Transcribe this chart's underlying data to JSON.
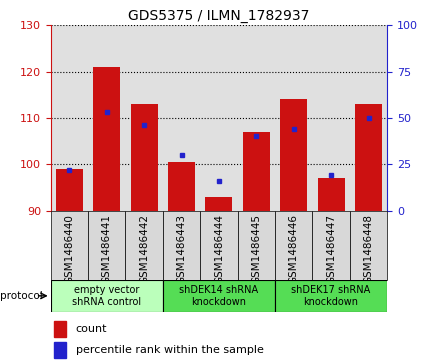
{
  "title": "GDS5375 / ILMN_1782937",
  "samples": [
    "GSM1486440",
    "GSM1486441",
    "GSM1486442",
    "GSM1486443",
    "GSM1486444",
    "GSM1486445",
    "GSM1486446",
    "GSM1486447",
    "GSM1486448"
  ],
  "count_values": [
    99,
    121,
    113,
    100.5,
    93,
    107,
    114,
    97,
    113
  ],
  "percentile_values": [
    22,
    53,
    46,
    30,
    16,
    40,
    44,
    19,
    50
  ],
  "ylim_left": [
    90,
    130
  ],
  "ylim_right": [
    0,
    100
  ],
  "yticks_left": [
    90,
    100,
    110,
    120,
    130
  ],
  "yticks_right": [
    0,
    25,
    50,
    75,
    100
  ],
  "bar_color": "#cc1111",
  "dot_color": "#2222cc",
  "bar_bottom": 90,
  "groups": [
    {
      "label": "empty vector\nshRNA control",
      "start": 0,
      "end": 3,
      "color": "#bbffbb"
    },
    {
      "label": "shDEK14 shRNA\nknockdown",
      "start": 3,
      "end": 6,
      "color": "#55dd55"
    },
    {
      "label": "shDEK17 shRNA\nknockdown",
      "start": 6,
      "end": 9,
      "color": "#55dd55"
    }
  ],
  "legend_count_label": "count",
  "legend_pct_label": "percentile rank within the sample",
  "protocol_label": "protocol",
  "fig_width": 4.4,
  "fig_height": 3.63,
  "title_fontsize": 10,
  "tick_fontsize": 8,
  "label_fontsize": 7.5,
  "group_fontsize": 7
}
